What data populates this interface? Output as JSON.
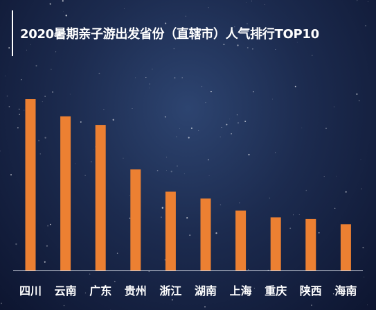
{
  "title": "2020暑期亲子游出发省份（直辖市）人气排行TOP10",
  "colors": {
    "bar": "#ec8032",
    "baseline": "#d5dbe6",
    "text": "#ffffff"
  },
  "chart_data": {
    "type": "bar",
    "title": "2020暑期亲子游出发省份（直辖市）人气排行TOP10",
    "categories": [
      "四川",
      "云南",
      "广东",
      "贵州",
      "浙江",
      "湖南",
      "上海",
      "重庆",
      "陕西",
      "海南"
    ],
    "values": [
      100,
      90,
      85,
      59,
      46,
      42,
      35,
      31,
      30,
      27
    ],
    "ylim": [
      0,
      100
    ],
    "grid": false,
    "legend": "none"
  }
}
